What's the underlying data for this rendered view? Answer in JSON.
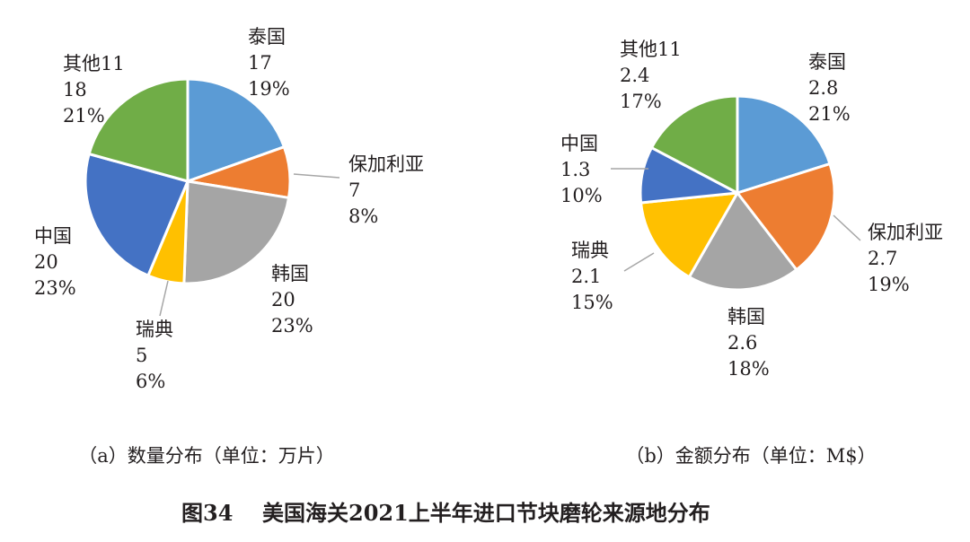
{
  "figure": {
    "caption_number": "图34",
    "caption_title": "美国海关2021上半年进口节块磨轮来源地分布"
  },
  "chart_data": [
    {
      "type": "pie",
      "subtitle": "（a）数量分布（单位：万片）",
      "slices": [
        {
          "label": "泰国",
          "value": 17,
          "value_text": "17",
          "percent_text": "19%",
          "color": "#5b9bd5"
        },
        {
          "label": "保加利亚",
          "value": 7,
          "value_text": "7",
          "percent_text": "8%",
          "color": "#ed7d31"
        },
        {
          "label": "韩国",
          "value": 20,
          "value_text": "20",
          "percent_text": "23%",
          "color": "#a5a5a5"
        },
        {
          "label": "瑞典",
          "value": 5,
          "value_text": "5",
          "percent_text": "6%",
          "color": "#ffc000"
        },
        {
          "label": "中国",
          "value": 20,
          "value_text": "20",
          "percent_text": "23%",
          "color": "#4472c4"
        },
        {
          "label": "其他11",
          "value": 18,
          "value_text": "18",
          "percent_text": "21%",
          "color": "#70ad47"
        }
      ]
    },
    {
      "type": "pie",
      "subtitle": "（b）金额分布（单位：M$）",
      "slices": [
        {
          "label": "泰国",
          "value": 2.8,
          "value_text": "2.8",
          "percent_text": "21%",
          "color": "#5b9bd5"
        },
        {
          "label": "保加利亚",
          "value": 2.7,
          "value_text": "2.7",
          "percent_text": "19%",
          "color": "#ed7d31"
        },
        {
          "label": "韩国",
          "value": 2.6,
          "value_text": "2.6",
          "percent_text": "18%",
          "color": "#a5a5a5"
        },
        {
          "label": "瑞典",
          "value": 2.1,
          "value_text": "2.1",
          "percent_text": "15%",
          "color": "#ffc000"
        },
        {
          "label": "中国",
          "value": 1.3,
          "value_text": "1.3",
          "percent_text": "10%",
          "color": "#4472c4"
        },
        {
          "label": "其他11",
          "value": 2.4,
          "value_text": "2.4",
          "percent_text": "17%",
          "color": "#70ad47"
        }
      ]
    }
  ]
}
